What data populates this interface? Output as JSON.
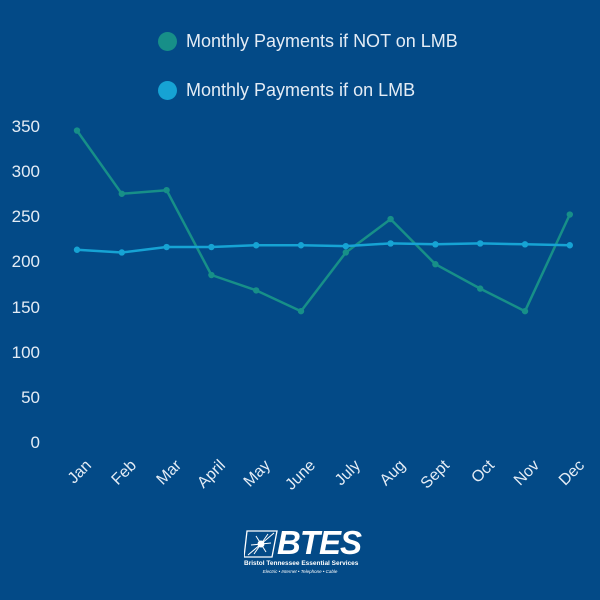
{
  "colors": {
    "background": "#034a87",
    "series_not_lmb": "#178f88",
    "series_lmb": "#16a3d4",
    "text": "#e4ecf5"
  },
  "legend": [
    {
      "label": "Monthly Payments if NOT on LMB",
      "color": "#178f88"
    },
    {
      "label": "Monthly Payments if on LMB",
      "color": "#16a3d4"
    }
  ],
  "y_axis": {
    "ticks": [
      "350",
      "300",
      "250",
      "200",
      "150",
      "100",
      "50",
      "0"
    ]
  },
  "x_axis": {
    "ticks": [
      "Jan",
      "Feb",
      "Mar",
      "April",
      "May",
      "June",
      "July",
      "Aug",
      "Sept",
      "Oct",
      "Nov",
      "Dec"
    ]
  },
  "logo": {
    "wordmark": "BTES",
    "name": "Bristol Tennessee Essential Services",
    "tagline": "Electric • Internet • Telephone • Cable",
    "icon": "lightning-burst-icon"
  },
  "chart_data": {
    "type": "line",
    "title": "",
    "xlabel": "",
    "ylabel": "",
    "categories": [
      "Jan",
      "Feb",
      "Mar",
      "April",
      "May",
      "June",
      "July",
      "Aug",
      "Sept",
      "Oct",
      "Nov",
      "Dec"
    ],
    "series": [
      {
        "name": "Monthly Payments if NOT on LMB",
        "color": "#178f88",
        "values": [
          346,
          276,
          280,
          186,
          169,
          146,
          211,
          248,
          198,
          171,
          146,
          253
        ]
      },
      {
        "name": "Monthly Payments if on LMB",
        "color": "#16a3d4",
        "values": [
          214,
          211,
          217,
          217,
          219,
          219,
          218,
          221,
          220,
          221,
          220,
          219
        ]
      }
    ],
    "ylim": [
      0,
      350
    ],
    "yticks": [
      0,
      50,
      100,
      150,
      200,
      250,
      300,
      350
    ],
    "grid": false,
    "legend_position": "top"
  }
}
